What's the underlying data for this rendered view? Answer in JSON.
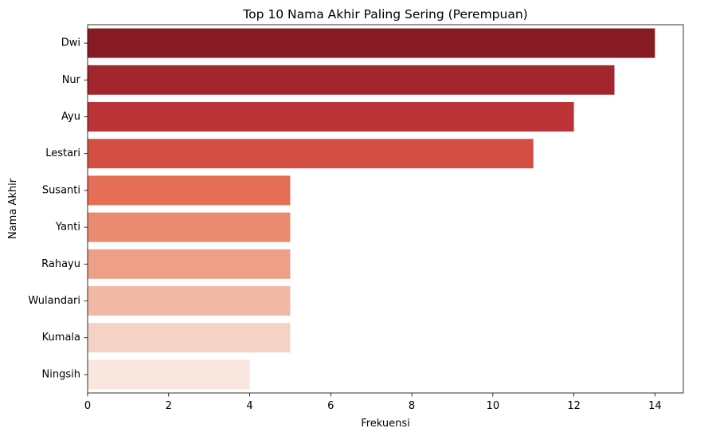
{
  "chart_data": {
    "type": "bar",
    "orientation": "horizontal",
    "title": "Top 10 Nama Akhir Paling Sering (Perempuan)",
    "xlabel": "Frekuensi",
    "ylabel": "Nama Akhir",
    "categories": [
      "Dwi",
      "Nur",
      "Ayu",
      "Lestari",
      "Susanti",
      "Yanti",
      "Rahayu",
      "Wulandari",
      "Kumala",
      "Ningsih"
    ],
    "values": [
      14,
      13,
      12,
      11,
      5,
      5,
      5,
      5,
      5,
      4
    ],
    "colors": [
      "#861b24",
      "#a2262c",
      "#bb3237",
      "#d44f43",
      "#e56e57",
      "#ea8a6f",
      "#eda087",
      "#f1b8a5",
      "#f4d3c6",
      "#f9e6df"
    ],
    "xlim": [
      0,
      14.7
    ],
    "xticks": [
      0,
      2,
      4,
      6,
      8,
      10,
      12,
      14
    ],
    "grid": false,
    "legend": "none"
  }
}
